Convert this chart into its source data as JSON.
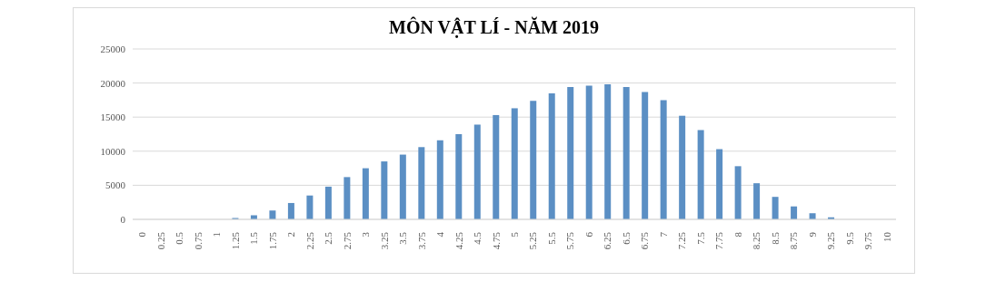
{
  "chart_data": {
    "type": "bar",
    "title": "MÔN VẬT LÍ - NĂM 2019",
    "categories": [
      "0",
      "0.25",
      "0.5",
      "0.75",
      "1",
      "1.25",
      "1.5",
      "1.75",
      "2",
      "2.25",
      "2.5",
      "2.75",
      "3",
      "3.25",
      "3.5",
      "3.75",
      "4",
      "4.25",
      "4.5",
      "4.75",
      "5",
      "5.25",
      "5.5",
      "5.75",
      "6",
      "6.25",
      "6.5",
      "6.75",
      "7",
      "7.25",
      "7.5",
      "7.75",
      "8",
      "8.25",
      "8.5",
      "8.75",
      "9",
      "9.25",
      "9.5",
      "9.75",
      "10"
    ],
    "values": [
      0,
      0,
      0,
      0,
      0,
      200,
      600,
      1300,
      2400,
      3500,
      4800,
      6200,
      7500,
      8500,
      9500,
      10600,
      11600,
      12500,
      13900,
      15300,
      16300,
      17400,
      18500,
      19400,
      19600,
      19800,
      19400,
      18700,
      17500,
      15200,
      13100,
      10300,
      7800,
      5300,
      3300,
      1900,
      900,
      300,
      0,
      0,
      0
    ],
    "color": "#5b8fc4",
    "ylim": [
      0,
      25000
    ],
    "yticks": [
      0,
      5000,
      10000,
      15000,
      20000,
      25000
    ],
    "grid": "y"
  }
}
